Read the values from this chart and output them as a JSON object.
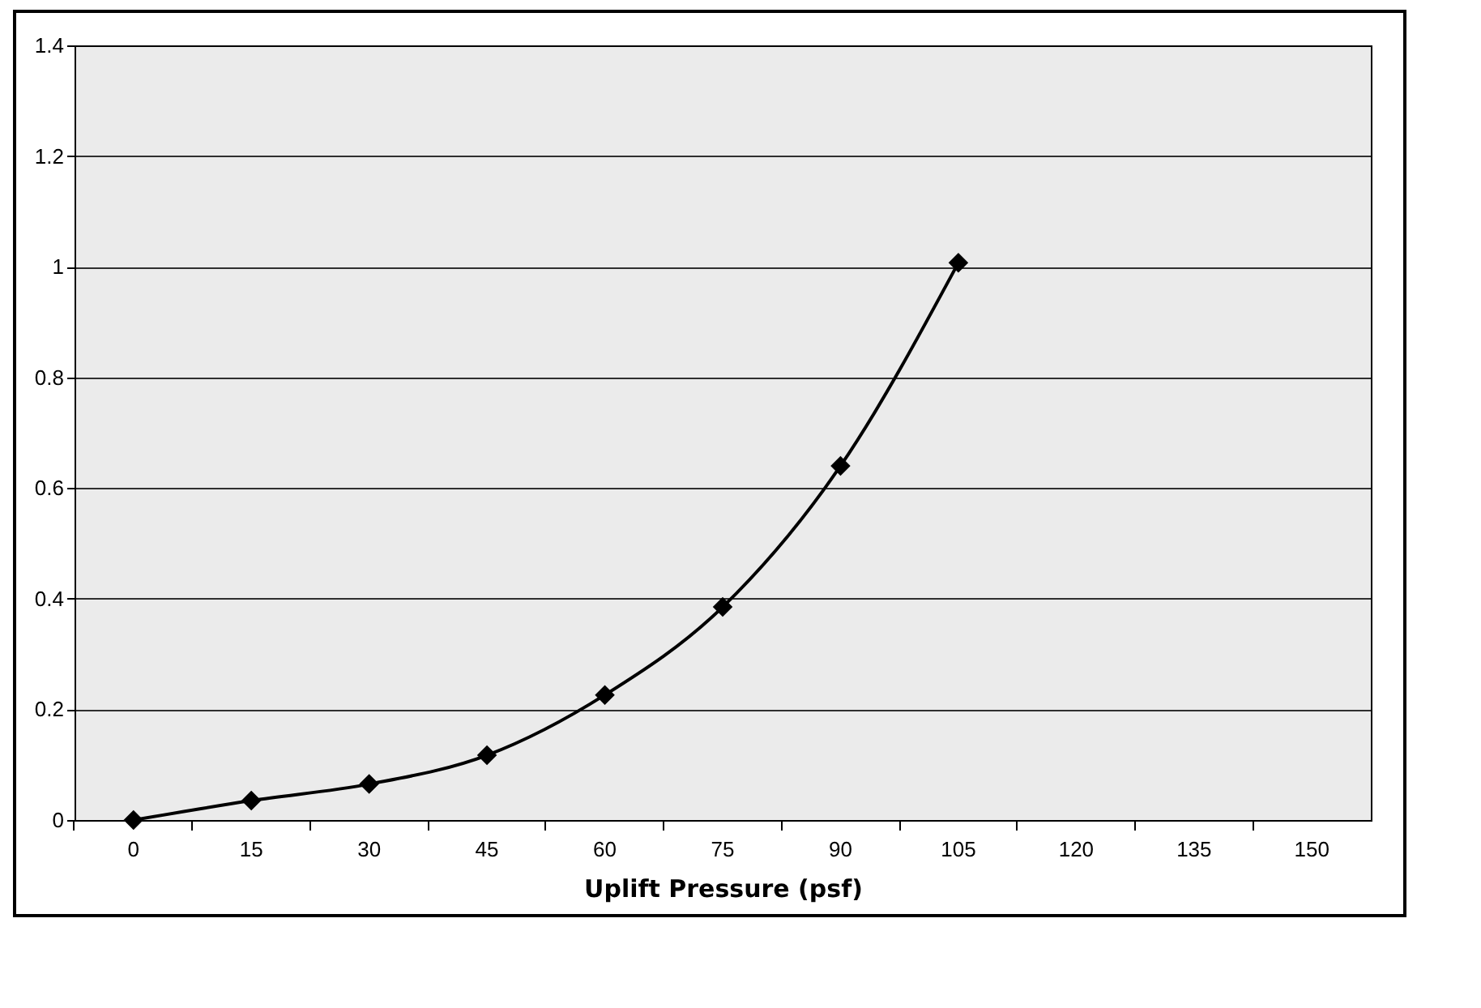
{
  "chart_data": {
    "type": "line",
    "xlabel": "Uplift Pressure (psf)",
    "categories": [
      "0",
      "15",
      "30",
      "45",
      "60",
      "75",
      "90",
      "105",
      "120",
      "135",
      "150"
    ],
    "values": [
      0,
      0.035,
      0.065,
      0.117,
      0.226,
      0.385,
      0.64,
      1.007,
      null,
      null,
      null
    ],
    "color": "#000000",
    "ylim": [
      0,
      1.4
    ],
    "yticks": [
      0,
      0.2,
      0.4,
      0.6,
      0.8,
      1,
      1.2,
      1.4
    ],
    "grid": "y",
    "marker": "diamond"
  }
}
